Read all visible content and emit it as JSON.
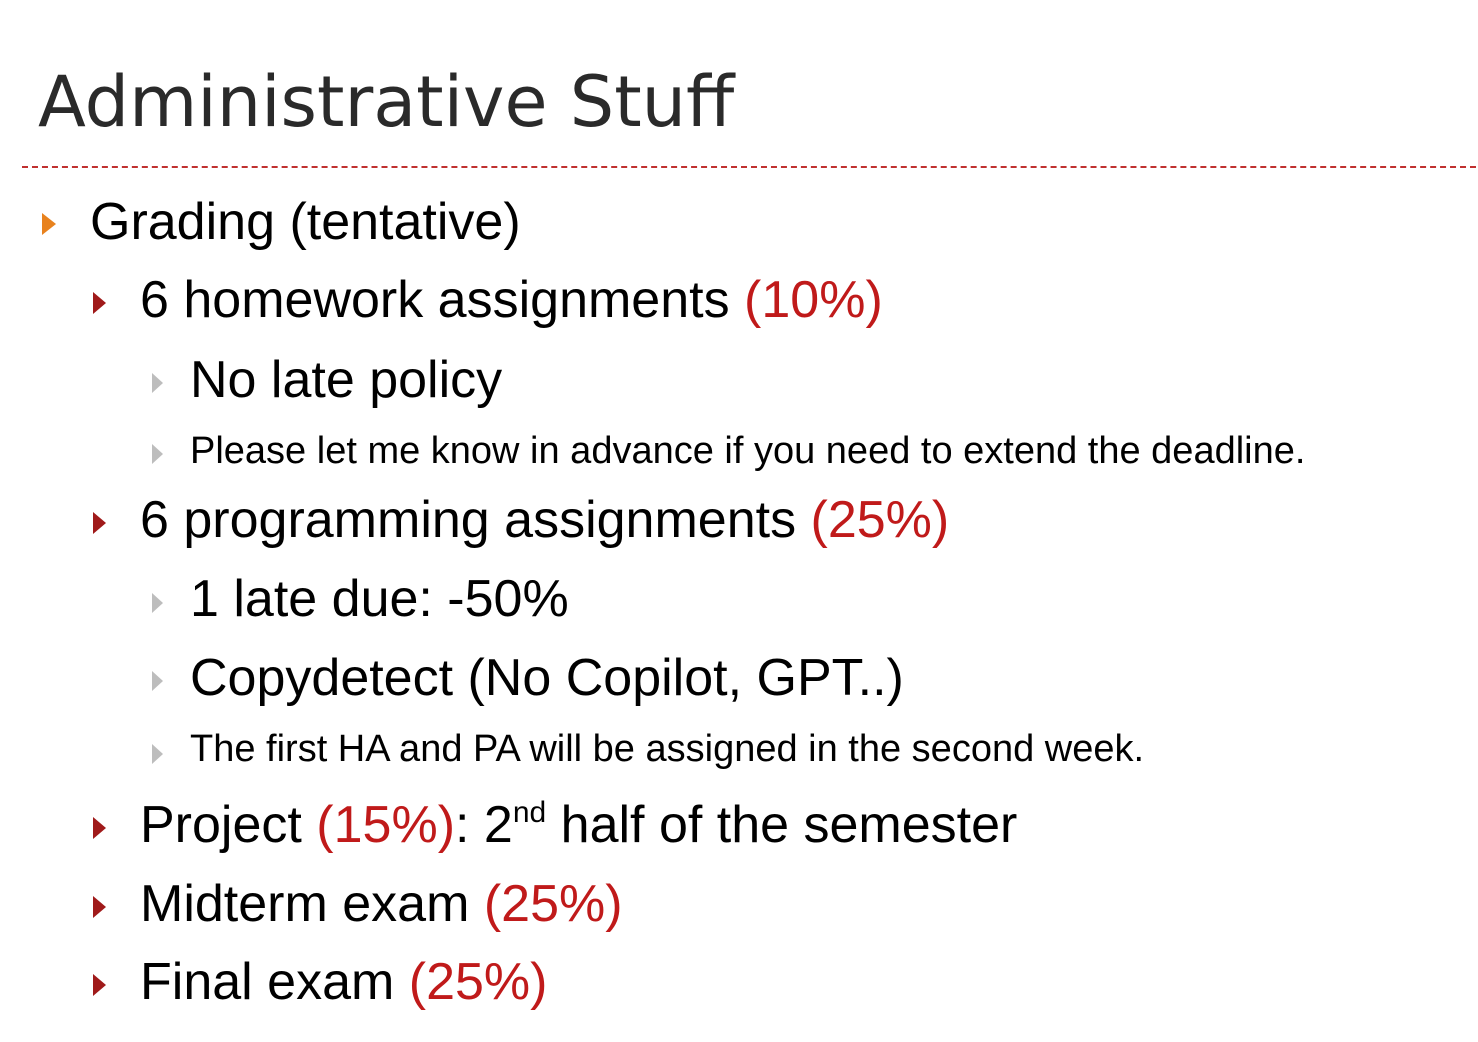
{
  "slide": {
    "title": "Administrative Stuff",
    "colors": {
      "level1_bullet": "#e8821e",
      "level2_bullet": "#a01a1a",
      "level3_bullet": "#bdbdbd",
      "percent_text": "#c01a1a",
      "divider": "#c0302f"
    }
  },
  "content": {
    "grading": {
      "label": "Grading (tentative)"
    },
    "homework": {
      "label": "6 homework assignments ",
      "percent": "(10%)",
      "sub1": "No late policy",
      "sub2": "Please let me know in advance if you need to extend the deadline."
    },
    "programming": {
      "label": "6 programming assignments ",
      "percent": "(25%)",
      "sub1": "1 late due: -50%",
      "sub2": "Copydetect (No Copilot, GPT..)",
      "sub3": "The first HA and PA will be assigned in the second week."
    },
    "project": {
      "label": "Project ",
      "percent": "(15%)",
      "after_colon": ": 2",
      "ordinal": "nd",
      "rest": " half of the semester"
    },
    "midterm": {
      "label": "Midterm exam ",
      "percent": "(25%)"
    },
    "final": {
      "label": "Final exam ",
      "percent": "(25%)"
    }
  }
}
